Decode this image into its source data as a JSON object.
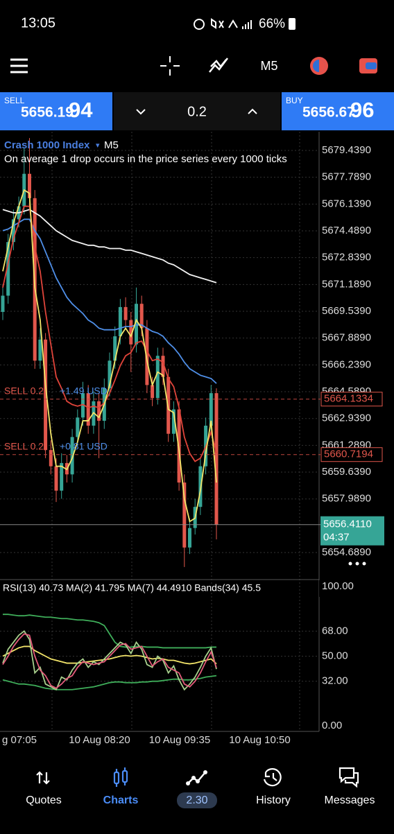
{
  "status_bar": {
    "time": "13:05",
    "battery": "66%"
  },
  "toolbar": {
    "timeframe": "M5"
  },
  "trade_panel": {
    "sell_label": "SELL",
    "sell_price": "5656.19",
    "sell_price_big": "94",
    "volume": "0.2",
    "buy_label": "BUY",
    "buy_price": "5656.67",
    "buy_price_big": "96"
  },
  "chart_data": [
    {
      "type": "candlestick",
      "title": "Crash 1000 Index",
      "marker": "▾",
      "timeframe": "M5",
      "subtitle": "On average 1 drop occurs in the price series every 1000 ticks",
      "up_color": "#36a596",
      "down_color": "#e2574c",
      "open": [
        5669.5,
        5670.5,
        5673.8,
        5675.2,
        5676.0,
        5678.0,
        5676.5,
        5666.5,
        5667.8,
        5661.0,
        5660.0,
        5658.5,
        5660.2,
        5659.5,
        5661.8,
        5663.0,
        5664.5,
        5662.5,
        5664.0,
        5662.8,
        5664.8,
        5666.5,
        5668.0,
        5669.8,
        5669.0,
        5667.5,
        5670.0,
        5668.5,
        5665.0,
        5664.2,
        5666.8,
        5665.5,
        5662.0,
        5663.5,
        5659.0,
        5655.0,
        5656.2,
        5657.5,
        5660.0,
        5662.5,
        5664.5
      ],
      "high": [
        5671.2,
        5674.3,
        5675.8,
        5676.6,
        5679.6,
        5680.2,
        5677.0,
        5668.5,
        5668.2,
        5661.6,
        5660.5,
        5660.8,
        5660.7,
        5662.3,
        5663.5,
        5665.2,
        5665.0,
        5664.6,
        5664.5,
        5665.4,
        5667.0,
        5668.6,
        5670.3,
        5670.4,
        5669.5,
        5671.0,
        5670.5,
        5669.0,
        5665.5,
        5667.3,
        5667.3,
        5666.0,
        5664.0,
        5664.0,
        5659.5,
        5656.8,
        5658.0,
        5660.5,
        5663.0,
        5665.0,
        5664.8
      ],
      "low": [
        5669.0,
        5670.0,
        5673.3,
        5674.7,
        5675.5,
        5676.0,
        5666.0,
        5666.0,
        5660.5,
        5659.5,
        5657.8,
        5658.0,
        5659.0,
        5659.0,
        5661.3,
        5662.5,
        5662.0,
        5662.0,
        5660.5,
        5662.3,
        5664.3,
        5666.0,
        5667.5,
        5668.5,
        5665.8,
        5667.0,
        5668.0,
        5664.5,
        5663.7,
        5663.8,
        5665.0,
        5661.5,
        5661.5,
        5658.5,
        5653.8,
        5654.6,
        5655.8,
        5657.0,
        5659.5,
        5662.0,
        5655.5
      ],
      "close": [
        5670.5,
        5673.8,
        5675.2,
        5676.0,
        5678.0,
        5676.5,
        5666.5,
        5667.8,
        5661.0,
        5660.0,
        5658.5,
        5660.2,
        5659.5,
        5661.8,
        5663.0,
        5664.5,
        5662.5,
        5664.0,
        5662.8,
        5664.8,
        5666.5,
        5668.0,
        5669.8,
        5669.0,
        5667.5,
        5670.0,
        5668.5,
        5665.0,
        5664.2,
        5666.8,
        5665.5,
        5662.0,
        5663.5,
        5659.0,
        5655.0,
        5656.2,
        5657.5,
        5660.0,
        5662.5,
        5664.5,
        5656.411
      ],
      "lines": [
        {
          "color": "#f2f2f2",
          "values": [
            5675.8,
            5675.7,
            5675.6,
            5675.6,
            5675.7,
            5675.8,
            5675.6,
            5675.4,
            5675.1,
            5674.8,
            5674.5,
            5674.3,
            5674.1,
            5673.9,
            5673.8,
            5673.7,
            5673.6,
            5673.6,
            5673.5,
            5673.5,
            5673.4,
            5673.4,
            5673.4,
            5673.3,
            5673.3,
            5673.2,
            5673.1,
            5673.0,
            5672.9,
            5672.8,
            5672.7,
            5672.5,
            5672.4,
            5672.2,
            5672.0,
            5671.8,
            5671.7,
            5671.6,
            5671.5,
            5671.4,
            5671.3
          ]
        },
        {
          "color": "#4f8fe8",
          "values": [
            5674.5,
            5674.6,
            5674.8,
            5675.0,
            5675.2,
            5675.2,
            5674.5,
            5674.0,
            5673.2,
            5672.4,
            5671.6,
            5671.0,
            5670.4,
            5670.0,
            5669.7,
            5669.4,
            5669.0,
            5668.8,
            5668.5,
            5668.4,
            5668.4,
            5668.4,
            5668.5,
            5668.6,
            5668.6,
            5668.7,
            5668.7,
            5668.5,
            5668.3,
            5668.2,
            5668.0,
            5667.6,
            5667.3,
            5666.9,
            5666.4,
            5666.0,
            5665.8,
            5665.6,
            5665.5,
            5665.4,
            5665.1
          ]
        },
        {
          "color": "#e0443a",
          "values": [
            5671.0,
            5672.5,
            5674.0,
            5675.0,
            5676.0,
            5676.0,
            5673.5,
            5672.0,
            5669.5,
            5667.5,
            5665.5,
            5664.8,
            5664.0,
            5663.8,
            5663.7,
            5663.8,
            5663.6,
            5663.7,
            5663.6,
            5663.9,
            5664.5,
            5665.3,
            5666.2,
            5666.8,
            5667.0,
            5667.6,
            5667.7,
            5667.1,
            5666.5,
            5666.6,
            5666.4,
            5665.4,
            5664.9,
            5663.6,
            5661.8,
            5660.8,
            5660.3,
            5660.5,
            5661.2,
            5662.1,
            5660.8
          ]
        },
        {
          "color": "#f3e56a",
          "values": [
            5672.0,
            5673.5,
            5675.0,
            5676.0,
            5677.0,
            5676.8,
            5671.0,
            5669.0,
            5665.0,
            5662.0,
            5660.0,
            5660.0,
            5659.8,
            5660.5,
            5661.5,
            5662.8,
            5662.8,
            5663.3,
            5663.0,
            5663.8,
            5665.0,
            5666.5,
            5668.0,
            5668.5,
            5668.0,
            5669.0,
            5668.5,
            5666.5,
            5665.0,
            5665.8,
            5665.6,
            5663.5,
            5663.3,
            5661.0,
            5658.0,
            5656.6,
            5656.8,
            5658.5,
            5660.8,
            5662.8,
            5659.0
          ]
        }
      ],
      "orders": [
        {
          "side": "SELL 0.2,",
          "profit": "+1.49 USD",
          "price": 5664.1334
        },
        {
          "side": "SELL 0.2,",
          "profit": "+0.81 USD",
          "price": 5660.7194
        }
      ],
      "last_price": {
        "value": 5656.411,
        "label": "5656.4110"
      },
      "countdown": "04:37",
      "ylim": [
        5653.07,
        5680.59
      ],
      "yticks": [
        {
          "value": 5679.439,
          "label": "5679.4390"
        },
        {
          "value": 5677.789,
          "label": "5677.7890"
        },
        {
          "value": 5676.139,
          "label": "5676.1390"
        },
        {
          "value": 5674.489,
          "label": "5674.4890"
        },
        {
          "value": 5672.839,
          "label": "5672.8390"
        },
        {
          "value": 5671.189,
          "label": "5671.1890"
        },
        {
          "value": 5669.539,
          "label": "5669.5390"
        },
        {
          "value": 5667.889,
          "label": "5667.8890"
        },
        {
          "value": 5666.239,
          "label": "5666.2390"
        },
        {
          "value": 5664.589,
          "label": "5664.5890"
        },
        {
          "value": 5662.939,
          "label": "5662.9390"
        },
        {
          "value": 5661.289,
          "label": "5661.2890"
        },
        {
          "value": 5659.639,
          "label": "5659.6390"
        },
        {
          "value": 5657.989,
          "label": "5657.9890"
        },
        {
          "value": 5654.689,
          "label": "5654.6890"
        }
      ],
      "grid": true,
      "x_labels": [
        "g 07:05",
        "10 Aug 08:20",
        "10 Aug 09:35",
        "10 Aug 10:50"
      ]
    },
    {
      "type": "line",
      "title": "RSI(13) 40.73 MA(2) 41.795 MA(7) 44.4910 Bands(34) 45.5",
      "ylim": [
        0,
        100
      ],
      "yticks": [
        {
          "value": 100,
          "label": "100.00"
        },
        {
          "value": 68,
          "label": "68.00"
        },
        {
          "value": 50,
          "label": "50.00"
        },
        {
          "value": 32,
          "label": "32.00"
        },
        {
          "value": 0,
          "label": "0.00"
        }
      ],
      "series": [
        {
          "color": "#3fae5a",
          "values": [
            80,
            80,
            79.5,
            79,
            79,
            79.5,
            79,
            78.5,
            78,
            78,
            77.5,
            77,
            77,
            76.5,
            76,
            76,
            75.5,
            75,
            74,
            72,
            66,
            60,
            57,
            56.5,
            56.5,
            57,
            57,
            56.5,
            56.5,
            56.5,
            56,
            56,
            56,
            56,
            56,
            56,
            56,
            56,
            56,
            56.5,
            56.5
          ]
        },
        {
          "color": "#3fae5a",
          "values": [
            33,
            32,
            31,
            30,
            30,
            29.5,
            29,
            28,
            27,
            26.5,
            26,
            26,
            26,
            26,
            26.5,
            27,
            27.5,
            28,
            29,
            30,
            31,
            31.5,
            31.5,
            31,
            31,
            31,
            31.5,
            31.5,
            32,
            32,
            32.5,
            33,
            33.5,
            33.5,
            33,
            33,
            33.5,
            34,
            35,
            35.5,
            36
          ]
        },
        {
          "color": "#f3e56a",
          "values": [
            50,
            52,
            54,
            56,
            57,
            57,
            54,
            52,
            50,
            48,
            47,
            46,
            45,
            45,
            45,
            45.5,
            46,
            46.5,
            47,
            47.5,
            48,
            49,
            50,
            50.5,
            50,
            50.5,
            50,
            49,
            48,
            48.5,
            48,
            47,
            47,
            46,
            45,
            44.5,
            45,
            46,
            47,
            48,
            44.491
          ]
        },
        {
          "color": "#a8d08d",
          "values": [
            45,
            55,
            60,
            65,
            68,
            62,
            38,
            42,
            30,
            28,
            26,
            35,
            33,
            40,
            45,
            48,
            42,
            46,
            44,
            48,
            52,
            56,
            60,
            58,
            52,
            60,
            55,
            44,
            42,
            50,
            47,
            38,
            43,
            33,
            26,
            30,
            35,
            42,
            50,
            56,
            40.73
          ]
        },
        {
          "color": "#e25b7a",
          "values": [
            44,
            50,
            57,
            62,
            66,
            65,
            50,
            40,
            36,
            29,
            27,
            30,
            34,
            36,
            42,
            46,
            45,
            44,
            45,
            46,
            50,
            54,
            58,
            59,
            55,
            56,
            57,
            50,
            43,
            46,
            48,
            42,
            40,
            38,
            30,
            28,
            32,
            38,
            46,
            53,
            41.795
          ]
        }
      ]
    }
  ],
  "nav": {
    "quotes": "Quotes",
    "charts": "Charts",
    "trade": "2.30",
    "history": "History",
    "messages": "Messages"
  }
}
